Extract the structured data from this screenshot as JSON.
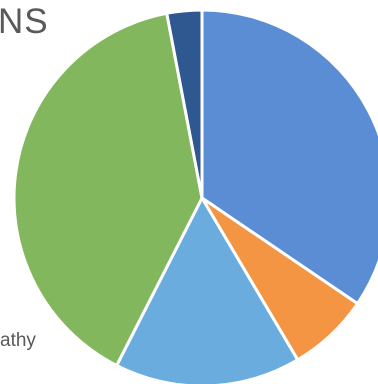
{
  "chart_data": {
    "type": "pie",
    "title": "NS",
    "series": [
      {
        "values": [
          34.5,
          7.0,
          16.0,
          39.5,
          3.0
        ]
      }
    ],
    "slice_colors": [
      "#5B8DD5",
      "#F39542",
      "#6AACDE",
      "#82B75E",
      "#2F5790"
    ],
    "visible_legend_fragment": "athy",
    "legend_placement": "left"
  }
}
